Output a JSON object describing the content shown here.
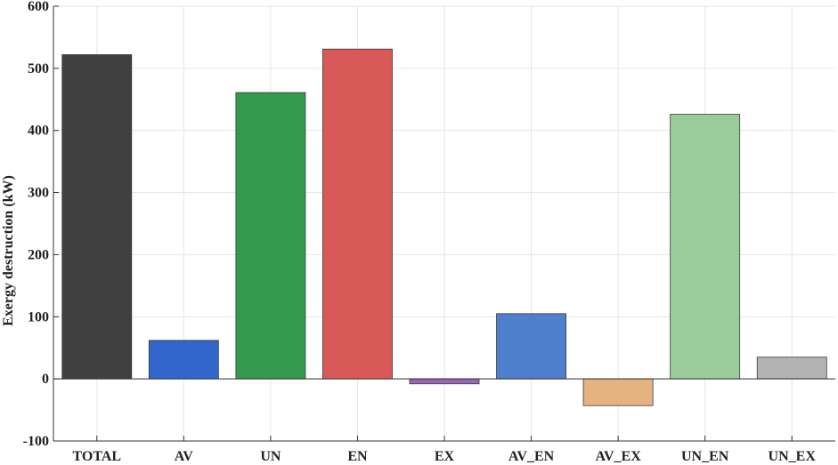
{
  "chart_data": {
    "type": "bar",
    "title": "",
    "xlabel": "",
    "ylabel": "Exergy destruction (kW)",
    "ylim": [
      -100,
      600
    ],
    "yticks": [
      -100,
      0,
      100,
      200,
      300,
      400,
      500,
      600
    ],
    "grid": true,
    "categories": [
      "TOTAL",
      "AV",
      "UN",
      "EN",
      "EX",
      "AV_EN",
      "AV_EX",
      "UN_EN",
      "UN_EX"
    ],
    "values": [
      522,
      62,
      461,
      531,
      -8,
      105,
      -43,
      426,
      35
    ],
    "colors": [
      "#404040",
      "#3366cc",
      "#339a4d",
      "#d95959",
      "#9966bb",
      "#4d7fcc",
      "#e6b380",
      "#99cc99",
      "#b3b3b3"
    ]
  }
}
